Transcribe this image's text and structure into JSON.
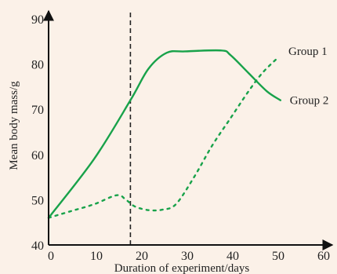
{
  "chart_data": {
    "type": "line",
    "title": "",
    "xlabel": "Duration of experiment/days",
    "ylabel": "Mean body mass/g",
    "xlim": [
      0,
      60
    ],
    "ylim": [
      40,
      90
    ],
    "xticks": [
      0,
      10,
      20,
      30,
      40,
      50,
      60
    ],
    "yticks": [
      40,
      50,
      60,
      70,
      80,
      90
    ],
    "grid": false,
    "vertical_marker": {
      "x": 18,
      "style": "dashed",
      "color": "#222222"
    },
    "series": [
      {
        "name": "Group 1",
        "style": "dotted",
        "color": "#18a24a",
        "points": [
          [
            0,
            46
          ],
          [
            5,
            47.5
          ],
          [
            10,
            49
          ],
          [
            15,
            51
          ],
          [
            17,
            50
          ],
          [
            19,
            48.5
          ],
          [
            22,
            47.7
          ],
          [
            25,
            47.8
          ],
          [
            28,
            49
          ],
          [
            32,
            55
          ],
          [
            36,
            62
          ],
          [
            40,
            68
          ],
          [
            44,
            74
          ],
          [
            47,
            78
          ],
          [
            50,
            81
          ]
        ]
      },
      {
        "name": "Group 2",
        "style": "solid",
        "color": "#18a24a",
        "points": [
          [
            0,
            46
          ],
          [
            10,
            59
          ],
          [
            18,
            72
          ],
          [
            22,
            79
          ],
          [
            26,
            82.5
          ],
          [
            30,
            82.8
          ],
          [
            38,
            83
          ],
          [
            40,
            82
          ],
          [
            44,
            78
          ],
          [
            48,
            74
          ],
          [
            51,
            72
          ]
        ]
      }
    ]
  }
}
